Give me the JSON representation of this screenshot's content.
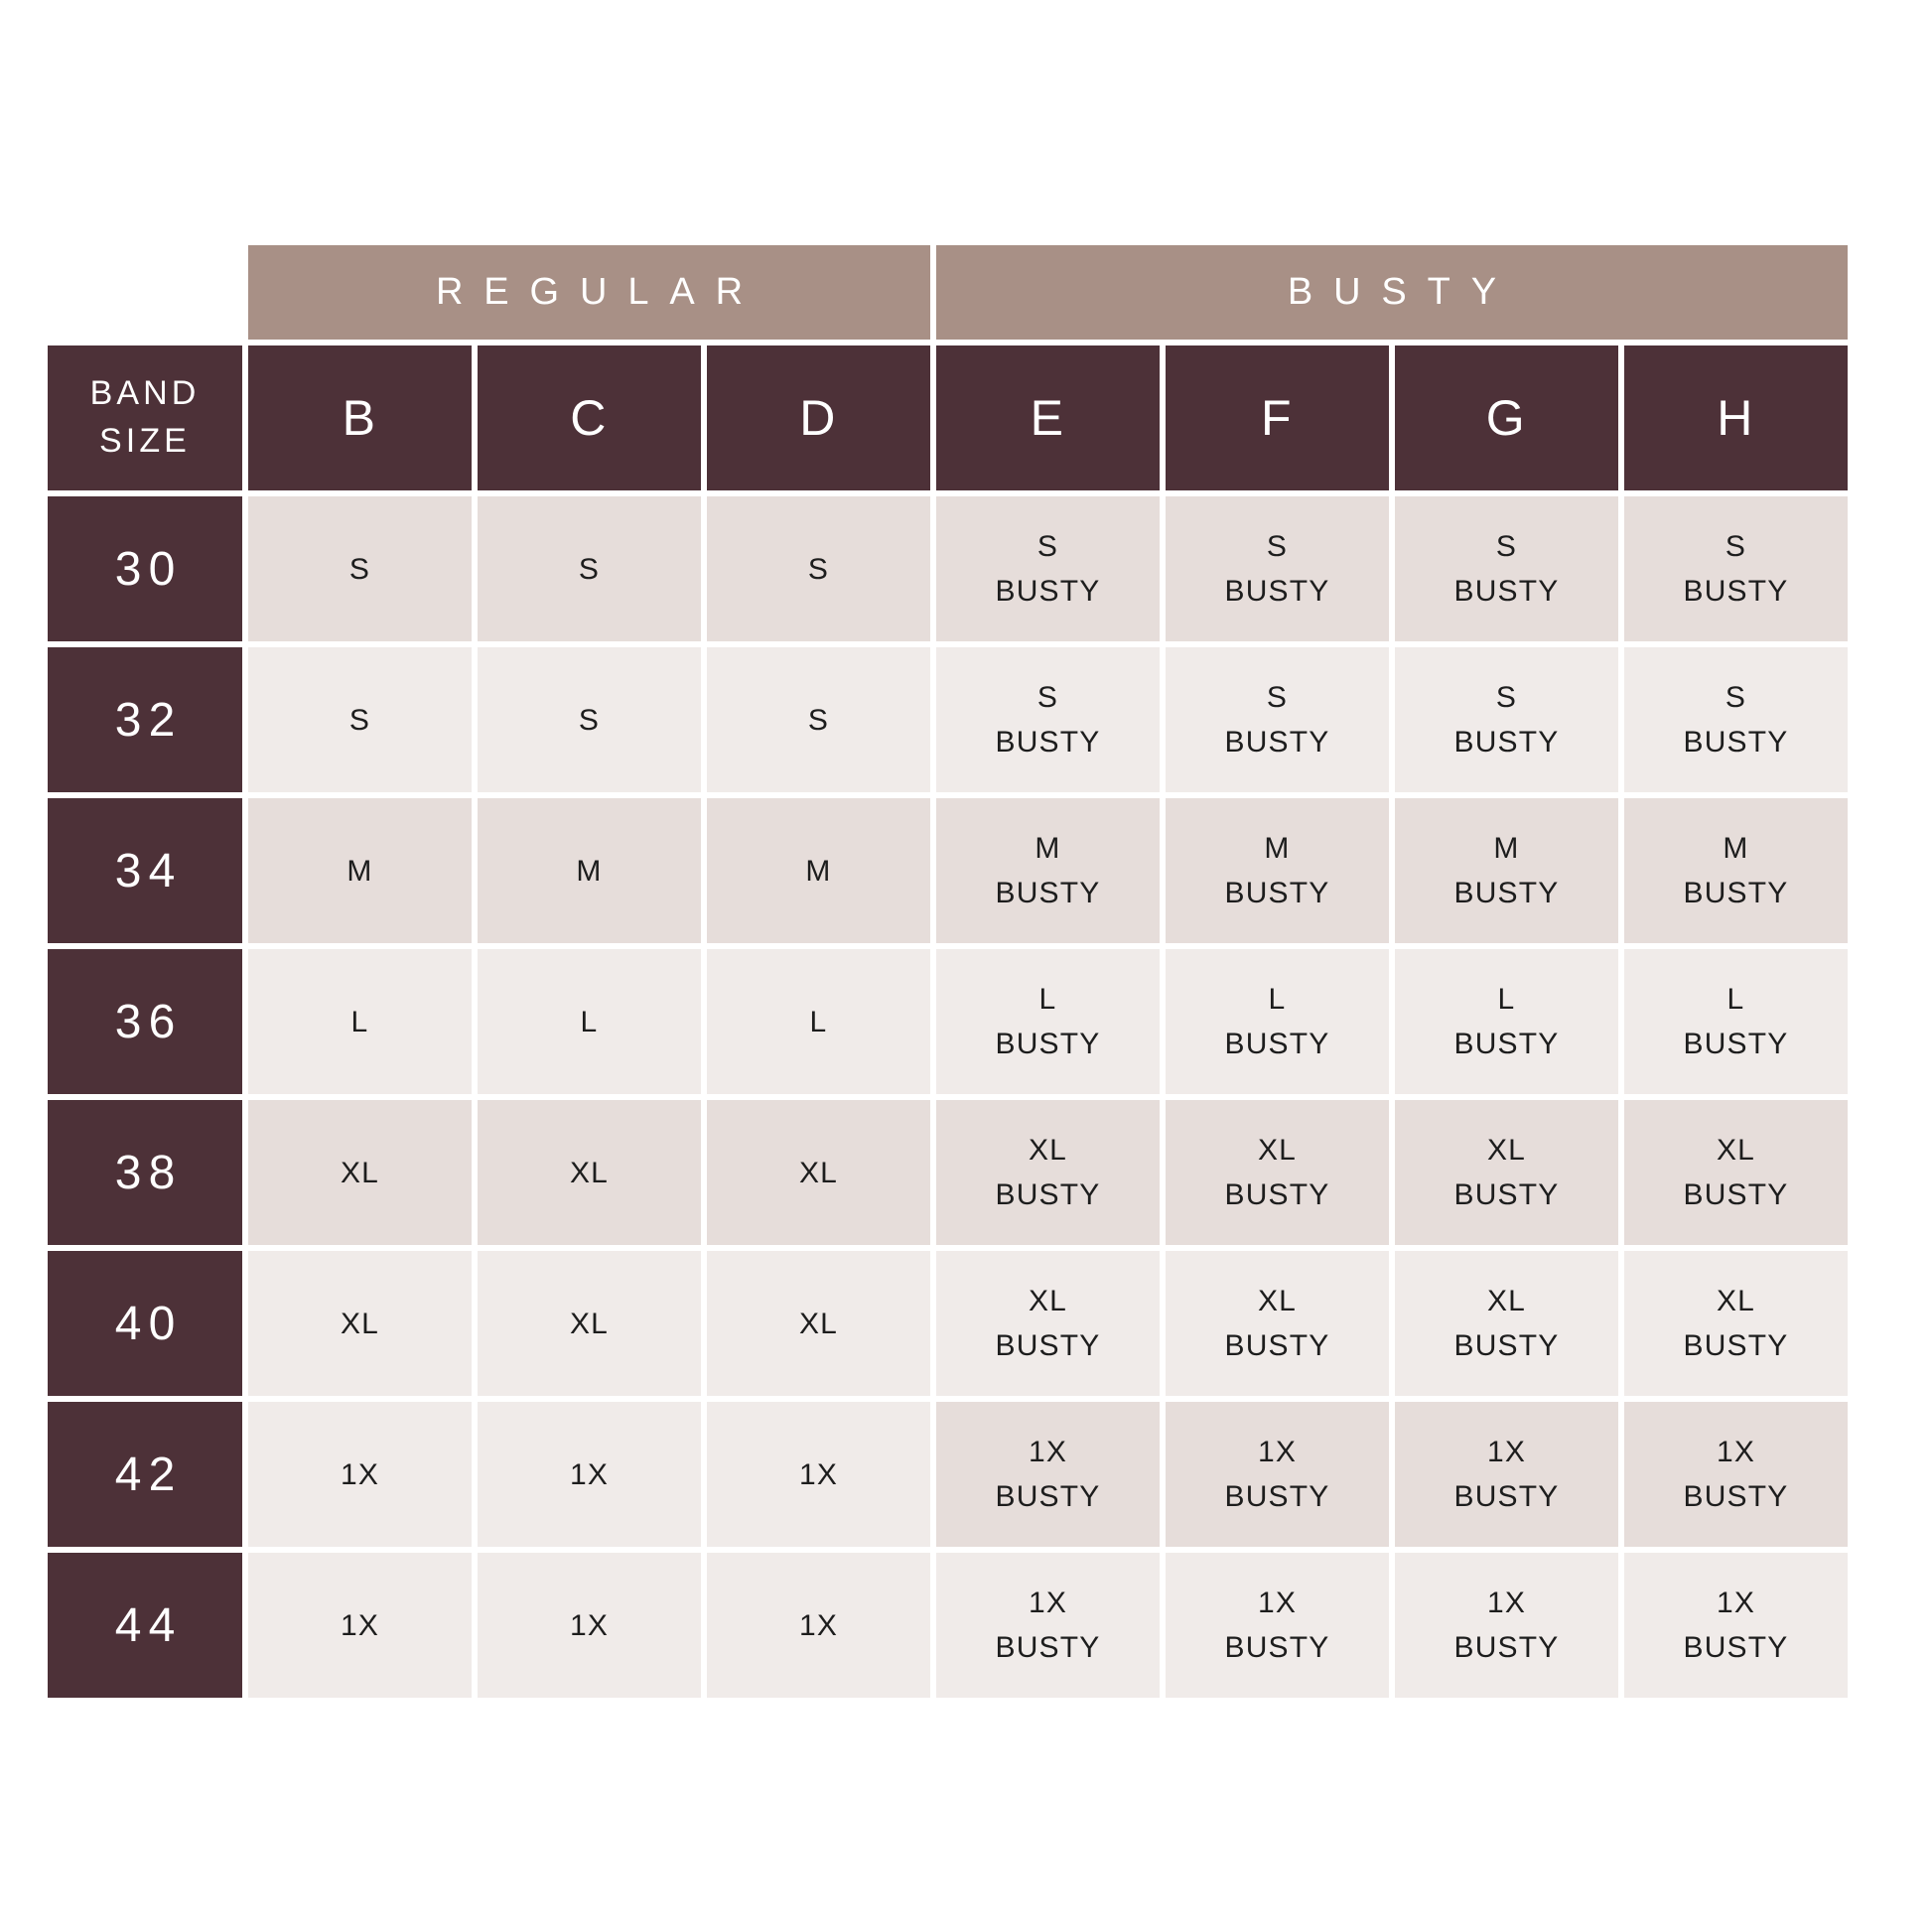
{
  "colors": {
    "maroon": "#4d3138",
    "tan": "#a89086",
    "row_dark": "#e6ddda",
    "row_light": "#f0ebe9",
    "header_text": "#ffffff",
    "value_text": "#1d1d1d"
  },
  "chart_data": {
    "type": "table",
    "title": "",
    "corner_header": "BAND\nSIZE",
    "column_groups": [
      {
        "label": "REGULAR",
        "span": 3,
        "columns": [
          "B",
          "C",
          "D"
        ]
      },
      {
        "label": "BUSTY",
        "span": 4,
        "columns": [
          "E",
          "F",
          "G",
          "H"
        ]
      }
    ],
    "cup_columns": [
      "B",
      "C",
      "D",
      "E",
      "F",
      "G",
      "H"
    ],
    "rows": [
      {
        "band": "30",
        "values": [
          "S",
          "S",
          "S",
          "S\nBUSTY",
          "S\nBUSTY",
          "S\nBUSTY",
          "S\nBUSTY"
        ]
      },
      {
        "band": "32",
        "values": [
          "S",
          "S",
          "S",
          "S\nBUSTY",
          "S\nBUSTY",
          "S\nBUSTY",
          "S\nBUSTY"
        ]
      },
      {
        "band": "34",
        "values": [
          "M",
          "M",
          "M",
          "M\nBUSTY",
          "M\nBUSTY",
          "M\nBUSTY",
          "M\nBUSTY"
        ]
      },
      {
        "band": "36",
        "values": [
          "L",
          "L",
          "L",
          "L\nBUSTY",
          "L\nBUSTY",
          "L\nBUSTY",
          "L\nBUSTY"
        ]
      },
      {
        "band": "38",
        "values": [
          "XL",
          "XL",
          "XL",
          "XL\nBUSTY",
          "XL\nBUSTY",
          "XL\nBUSTY",
          "XL\nBUSTY"
        ]
      },
      {
        "band": "40",
        "values": [
          "XL",
          "XL",
          "XL",
          "XL\nBUSTY",
          "XL\nBUSTY",
          "XL\nBUSTY",
          "XL\nBUSTY"
        ]
      },
      {
        "band": "42",
        "values": [
          "1X",
          "1X",
          "1X",
          "1X\nBUSTY",
          "1X\nBUSTY",
          "1X\nBUSTY",
          "1X\nBUSTY"
        ]
      },
      {
        "band": "44",
        "values": [
          "1X",
          "1X",
          "1X",
          "1X\nBUSTY",
          "1X\nBUSTY",
          "1X\nBUSTY",
          "1X\nBUSTY"
        ]
      }
    ]
  }
}
